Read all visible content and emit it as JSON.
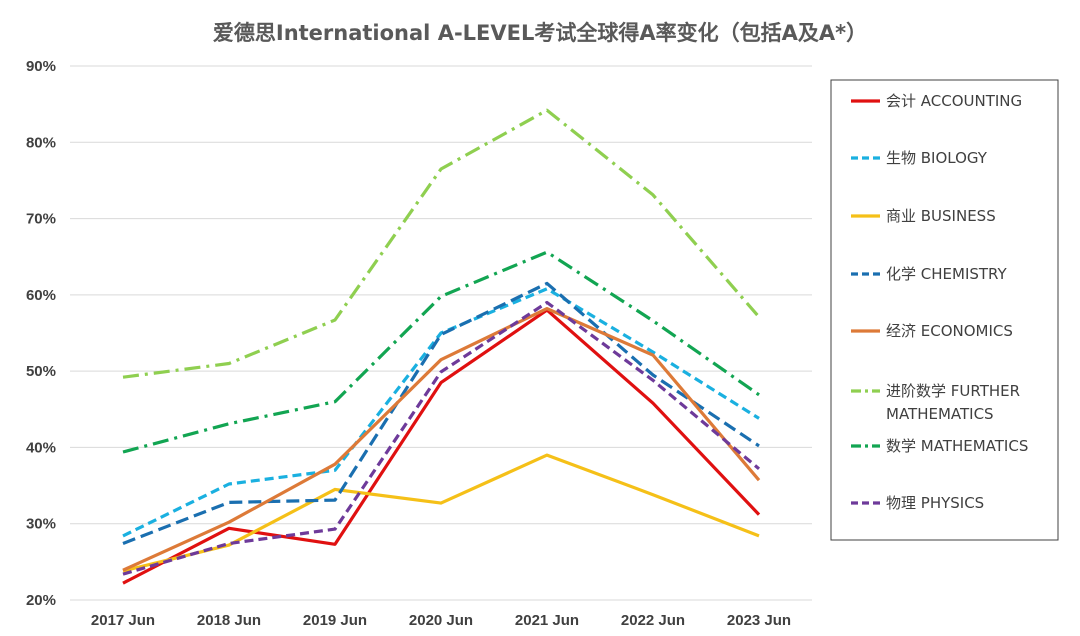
{
  "chart_data": {
    "type": "line",
    "title": "爱德思International A-LEVEL考试全球得A率变化（包括A及A*）",
    "xlabel": "",
    "ylabel": "",
    "categories": [
      "2017 Jun",
      "2018 Jun",
      "2019 Jun",
      "2020 Jun",
      "2021 Jun",
      "2022 Jun",
      "2023 Jun"
    ],
    "y_ticks": [
      "20%",
      "30%",
      "40%",
      "50%",
      "60%",
      "70%",
      "80%",
      "90%"
    ],
    "ylim": [
      20,
      90
    ],
    "grid": true,
    "legend_position": "right",
    "series": [
      {
        "name": "会计 ACCOUNTING",
        "color": "#e01010",
        "dash": "solid",
        "values": [
          22.2,
          29.4,
          27.3,
          48.5,
          58.0,
          45.8,
          31.2
        ]
      },
      {
        "name": "生物 BIOLOGY",
        "color": "#1ab0e0",
        "dash": "dash",
        "values": [
          28.4,
          35.2,
          37.0,
          55.0,
          60.8,
          52.5,
          43.8
        ]
      },
      {
        "name": "商业 BUSINESS",
        "color": "#f5c018",
        "dash": "solid",
        "values": [
          23.8,
          27.2,
          34.5,
          32.7,
          39.0,
          33.8,
          28.4
        ]
      },
      {
        "name": "化学 CHEMISTRY",
        "color": "#1a6fb0",
        "dash": "longdash",
        "values": [
          27.4,
          32.8,
          33.1,
          54.8,
          61.5,
          49.5,
          40.2
        ]
      },
      {
        "name": "经济 ECONOMICS",
        "color": "#dd7a38",
        "dash": "solid",
        "values": [
          23.9,
          30.2,
          37.8,
          51.5,
          58.2,
          52.1,
          35.7
        ]
      },
      {
        "name": "进阶数学 FURTHER MATHEMATICS",
        "color": "#8fcf50",
        "dash": "dashdot",
        "values": [
          49.2,
          51.0,
          56.7,
          76.5,
          84.2,
          73.1,
          57.1
        ]
      },
      {
        "name": "数学 MATHEMATICS",
        "color": "#12a552",
        "dash": "dashdot",
        "values": [
          39.4,
          43.1,
          46.0,
          59.8,
          65.6,
          56.6,
          46.9
        ]
      },
      {
        "name": "物理 PHYSICS",
        "color": "#6e3a9a",
        "dash": "dash",
        "values": [
          23.4,
          27.4,
          29.3,
          49.9,
          59.0,
          48.8,
          37.2
        ]
      }
    ]
  }
}
